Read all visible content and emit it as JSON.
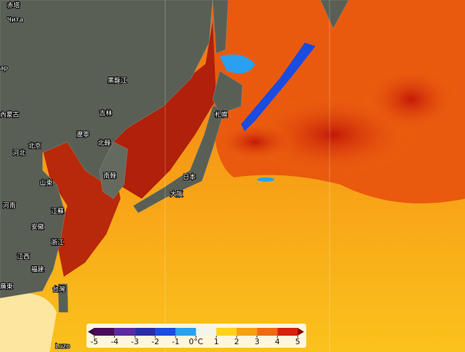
{
  "map": {
    "labels": [
      "赤塔",
      "Чита",
      "ap",
      "黑龍江",
      "吉林",
      "內蒙古",
      "遼寧",
      "北京",
      "北韓",
      "河北",
      "南韓",
      "山東",
      "河南",
      "江蘇",
      "安徽",
      "浙江",
      "江西",
      "福建",
      "廣東",
      "台灣",
      "日本",
      "大阪",
      "札幌",
      "Luzo"
    ],
    "legend": {
      "ticks": [
        -5,
        -4,
        -3,
        -2,
        -1,
        {
          "value": 0,
          "label": "0°C"
        },
        1,
        2,
        3,
        4,
        5
      ],
      "colors": [
        "#4a0a5c",
        "#5a2aa0",
        "#2c2ca8",
        "#1a4ce0",
        "#2aa0f0",
        "#f4f4e8",
        "#ffd21a",
        "#f8a010",
        "#f06a10",
        "#d8200c"
      ],
      "low_color": "#3a0848",
      "high_color": "#8a0a08"
    }
  }
}
